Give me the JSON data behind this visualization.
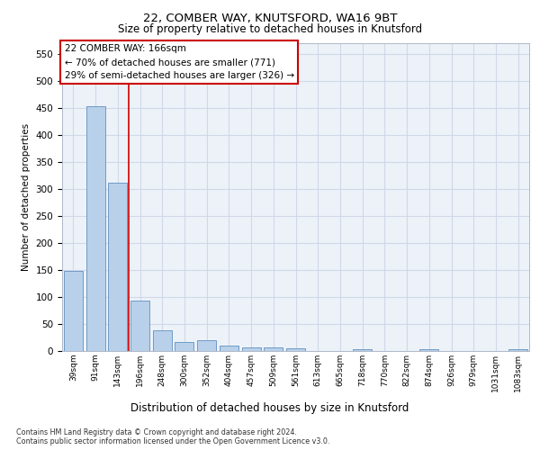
{
  "title1": "22, COMBER WAY, KNUTSFORD, WA16 9BT",
  "title2": "Size of property relative to detached houses in Knutsford",
  "xlabel": "Distribution of detached houses by size in Knutsford",
  "ylabel": "Number of detached properties",
  "categories": [
    "39sqm",
    "91sqm",
    "143sqm",
    "196sqm",
    "248sqm",
    "300sqm",
    "352sqm",
    "404sqm",
    "457sqm",
    "509sqm",
    "561sqm",
    "613sqm",
    "665sqm",
    "718sqm",
    "770sqm",
    "822sqm",
    "874sqm",
    "926sqm",
    "979sqm",
    "1031sqm",
    "1083sqm"
  ],
  "values": [
    148,
    453,
    311,
    94,
    38,
    17,
    20,
    10,
    6,
    6,
    5,
    0,
    0,
    4,
    0,
    0,
    4,
    0,
    0,
    0,
    4
  ],
  "bar_color": "#b8d0ea",
  "bar_edge_color": "#6090c0",
  "grid_color": "#d0d8e8",
  "annotation_box_text": "22 COMBER WAY: 166sqm\n← 70% of detached houses are smaller (771)\n29% of semi-detached houses are larger (326) →",
  "annotation_box_color": "#cc0000",
  "vline_color": "#cc0000",
  "vline_x": 2.5,
  "ylim": [
    0,
    570
  ],
  "yticks": [
    0,
    50,
    100,
    150,
    200,
    250,
    300,
    350,
    400,
    450,
    500,
    550
  ],
  "footer1": "Contains HM Land Registry data © Crown copyright and database right 2024.",
  "footer2": "Contains public sector information licensed under the Open Government Licence v3.0.",
  "plot_bg_color": "#edf2f9"
}
